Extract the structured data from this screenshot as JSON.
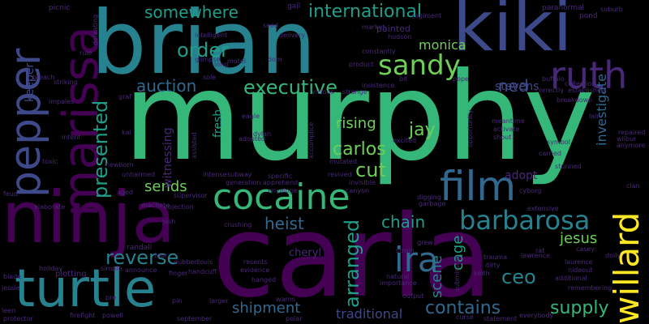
{
  "background": "#000000",
  "palette": {
    "dark_purple": "#440154",
    "purple": "#482878",
    "indigo": "#3e4989",
    "blue": "#31688e",
    "teal": "#26828e",
    "sea_green": "#1f9e89",
    "green": "#35b779",
    "yellow_green": "#6ece58",
    "yellow": "#fde725"
  },
  "words": [
    {
      "text": "murphy",
      "color": "#35b779"
    },
    {
      "text": "carla",
      "color": "#440154"
    },
    {
      "text": "brian",
      "color": "#26828e"
    },
    {
      "text": "ninja",
      "color": "#440154"
    },
    {
      "text": "kiki",
      "color": "#3e4989"
    },
    {
      "text": "marissa",
      "color": "#440154"
    },
    {
      "text": "pepper",
      "color": "#3e4989"
    },
    {
      "text": "turtle",
      "color": "#26828e"
    },
    {
      "text": "cocaine",
      "color": "#35b779"
    },
    {
      "text": "film",
      "color": "#31688e"
    },
    {
      "text": "willard",
      "color": "#fde725"
    },
    {
      "text": "ruth",
      "color": "#482878"
    },
    {
      "text": "barbarosa",
      "color": "#26828e"
    },
    {
      "text": "sandy",
      "color": "#6ece58"
    },
    {
      "text": "reverse",
      "color": "#26828e"
    },
    {
      "text": "ira",
      "color": "#31688e"
    },
    {
      "text": "presented",
      "color": "#1f9e89"
    },
    {
      "text": "arranged",
      "color": "#1f9e89"
    },
    {
      "text": "international",
      "color": "#1f9e89"
    },
    {
      "text": "somewhere",
      "color": "#1f9e89"
    },
    {
      "text": "order",
      "color": "#1f9e89"
    },
    {
      "text": "executive",
      "color": "#35b779"
    },
    {
      "text": "auction",
      "color": "#31688e"
    },
    {
      "text": "contains",
      "color": "#31688e"
    },
    {
      "text": "supply",
      "color": "#35b779"
    },
    {
      "text": "shipment",
      "color": "#31688e"
    },
    {
      "text": "traditional",
      "color": "#3e4989"
    },
    {
      "text": "chain",
      "color": "#1f9e89"
    },
    {
      "text": "ceo",
      "color": "#26828e"
    },
    {
      "text": "jesus",
      "color": "#6ece58"
    },
    {
      "text": "heist",
      "color": "#31688e"
    },
    {
      "text": "rising",
      "color": "#6ece58"
    },
    {
      "text": "carlos",
      "color": "#6ece58"
    },
    {
      "text": "cut",
      "color": "#6ece58"
    },
    {
      "text": "jay",
      "color": "#6ece58"
    },
    {
      "text": "ned",
      "color": "#3e4989"
    },
    {
      "text": "monica",
      "color": "#6ece58"
    },
    {
      "text": "stevens",
      "color": "#3e4989"
    },
    {
      "text": "investigate",
      "color": "#31688e"
    },
    {
      "text": "sends",
      "color": "#6ece58"
    },
    {
      "text": "scene",
      "color": "#26828e"
    },
    {
      "text": "cage",
      "color": "#1f9e89"
    },
    {
      "text": "adopt",
      "color": "#482878"
    },
    {
      "text": "fresh",
      "color": "#1f9e89"
    },
    {
      "text": "witnessing",
      "color": "#482878"
    },
    {
      "text": "keeper",
      "color": "#3e4989"
    },
    {
      "text": "plotting",
      "color": "#482878"
    },
    {
      "text": "cheryl",
      "color": "#482878"
    },
    {
      "text": "randall",
      "color": "#482878"
    },
    {
      "text": "picnic",
      "color": "#482878"
    },
    {
      "text": "motel",
      "color": "#482878"
    },
    {
      "text": "gail",
      "color": "#482878"
    },
    {
      "text": "paranormal",
      "color": "#482878"
    },
    {
      "text": "pond",
      "color": "#482878"
    },
    {
      "text": "suburb",
      "color": "#482878"
    },
    {
      "text": "intelligent",
      "color": "#482878"
    },
    {
      "text": "seed",
      "color": "#482878"
    },
    {
      "text": "painted",
      "color": "#482878"
    },
    {
      "text": "hudson",
      "color": "#482878"
    },
    {
      "text": "market",
      "color": "#482878"
    },
    {
      "text": "regiment",
      "color": "#482878"
    },
    {
      "text": "delivery",
      "color": "#482878"
    },
    {
      "text": "glimpse",
      "color": "#482878"
    },
    {
      "text": "dom",
      "color": "#482878"
    },
    {
      "text": "constantly",
      "color": "#482878"
    },
    {
      "text": "product",
      "color": "#482878"
    },
    {
      "text": "buffalo",
      "color": "#482878"
    },
    {
      "text": "breach",
      "color": "#482878"
    },
    {
      "text": "striking",
      "color": "#482878"
    },
    {
      "text": "impales",
      "color": "#482878"
    },
    {
      "text": "rule",
      "color": "#482878"
    },
    {
      "text": "kai",
      "color": "#482878"
    },
    {
      "text": "intent",
      "color": "#482878"
    },
    {
      "text": "toxic",
      "color": "#482878"
    },
    {
      "text": "newborn",
      "color": "#482878"
    },
    {
      "text": "unharmed",
      "color": "#482878"
    },
    {
      "text": "feud",
      "color": "#482878"
    },
    {
      "text": "elaborate",
      "color": "#482878"
    },
    {
      "text": "aged",
      "color": "#482878"
    },
    {
      "text": "machete",
      "color": "#482878"
    },
    {
      "text": "objection",
      "color": "#482878"
    },
    {
      "text": "josh",
      "color": "#482878"
    },
    {
      "text": "announce",
      "color": "#482878"
    },
    {
      "text": "tour",
      "color": "#482878"
    },
    {
      "text": "dubbed",
      "color": "#482878"
    },
    {
      "text": "louis",
      "color": "#482878"
    },
    {
      "text": "handcuff",
      "color": "#482878"
    },
    {
      "text": "finger",
      "color": "#482878"
    },
    {
      "text": "hanged",
      "color": "#482878"
    },
    {
      "text": "resents",
      "color": "#482878"
    },
    {
      "text": "evidence",
      "color": "#482878"
    },
    {
      "text": "pre",
      "color": "#482878"
    },
    {
      "text": "blade",
      "color": "#482878"
    },
    {
      "text": "holiday",
      "color": "#482878"
    },
    {
      "text": "simple",
      "color": "#482878"
    },
    {
      "text": "jessie",
      "color": "#482878"
    },
    {
      "text": "leen",
      "color": "#482878"
    },
    {
      "text": "protector",
      "color": "#482878"
    },
    {
      "text": "firefight",
      "color": "#482878"
    },
    {
      "text": "powell",
      "color": "#482878"
    },
    {
      "text": "september",
      "color": "#482878"
    },
    {
      "text": "pin",
      "color": "#482878"
    },
    {
      "text": "larger",
      "color": "#482878"
    },
    {
      "text": "warns",
      "color": "#482878"
    },
    {
      "text": "output",
      "color": "#482878"
    },
    {
      "text": "statement",
      "color": "#482878"
    },
    {
      "text": "everybody",
      "color": "#482878"
    },
    {
      "text": "curse",
      "color": "#482878"
    },
    {
      "text": "trauma",
      "color": "#482878"
    },
    {
      "text": "dirty",
      "color": "#482878"
    },
    {
      "text": "keith",
      "color": "#482878"
    },
    {
      "text": "importance",
      "color": "#482878"
    },
    {
      "text": "natural",
      "color": "#482878"
    },
    {
      "text": "strain",
      "color": "#482878"
    },
    {
      "text": "grew",
      "color": "#482878"
    },
    {
      "text": "rat",
      "color": "#482878"
    },
    {
      "text": "casey",
      "color": "#482878"
    },
    {
      "text": "doily",
      "color": "#482878"
    },
    {
      "text": "lawrence",
      "color": "#482878"
    },
    {
      "text": "laurence",
      "color": "#482878"
    },
    {
      "text": "nideout",
      "color": "#482878"
    },
    {
      "text": "remembering",
      "color": "#482878"
    },
    {
      "text": "extensive",
      "color": "#482878"
    },
    {
      "text": "cyborg",
      "color": "#482878"
    },
    {
      "text": "stunned",
      "color": "#482878"
    },
    {
      "text": "carried",
      "color": "#482878"
    },
    {
      "text": "symbol",
      "color": "#482878"
    },
    {
      "text": "meantime",
      "color": "#482878"
    },
    {
      "text": "activate",
      "color": "#482878"
    },
    {
      "text": "shout",
      "color": "#482878"
    },
    {
      "text": "wilbur",
      "color": "#482878"
    },
    {
      "text": "repaired",
      "color": "#482878"
    },
    {
      "text": "anymore",
      "color": "#482878"
    },
    {
      "text": "breakdown",
      "color": "#482878"
    },
    {
      "text": "collection",
      "color": "#482878"
    },
    {
      "text": "established",
      "color": "#482878"
    },
    {
      "text": "correctly",
      "color": "#482878"
    },
    {
      "text": "additional",
      "color": "#482878"
    },
    {
      "text": "clan",
      "color": "#482878"
    },
    {
      "text": "lair",
      "color": "#482878"
    },
    {
      "text": "opportunity",
      "color": "#482878"
    },
    {
      "text": "pope",
      "color": "#482878"
    },
    {
      "text": "bit",
      "color": "#482878"
    },
    {
      "text": "insistence",
      "color": "#482878"
    },
    {
      "text": "excited",
      "color": "#482878"
    },
    {
      "text": "revived",
      "color": "#482878"
    },
    {
      "text": "invisible",
      "color": "#482878"
    },
    {
      "text": "canyon",
      "color": "#482878"
    },
    {
      "text": "digging",
      "color": "#482878"
    },
    {
      "text": "garbage",
      "color": "#482878"
    },
    {
      "text": "specific",
      "color": "#482878"
    },
    {
      "text": "apprehend",
      "color": "#482878"
    },
    {
      "text": "generation",
      "color": "#482878"
    },
    {
      "text": "supervisor",
      "color": "#482878"
    },
    {
      "text": "subway",
      "color": "#482878"
    },
    {
      "text": "intense",
      "color": "#482878"
    },
    {
      "text": "crushing",
      "color": "#482878"
    },
    {
      "text": "dylan",
      "color": "#482878"
    },
    {
      "text": "eagle",
      "color": "#482878"
    },
    {
      "text": "adopted",
      "color": "#482878"
    },
    {
      "text": "sole",
      "color": "#482878"
    },
    {
      "text": "long",
      "color": "#482878"
    },
    {
      "text": "graf",
      "color": "#482878"
    },
    {
      "text": "vicious",
      "color": "#482878"
    },
    {
      "text": "strange",
      "color": "#482878"
    },
    {
      "text": "mutated",
      "color": "#482878"
    },
    {
      "text": "envelope",
      "color": "#482878"
    },
    {
      "text": "polar",
      "color": "#482878"
    },
    {
      "text": "defeating",
      "color": "#482878"
    },
    {
      "text": "assisted",
      "color": "#482878"
    },
    {
      "text": "submission",
      "color": "#482878"
    },
    {
      "text": "accomplice",
      "color": "#482878"
    }
  ]
}
